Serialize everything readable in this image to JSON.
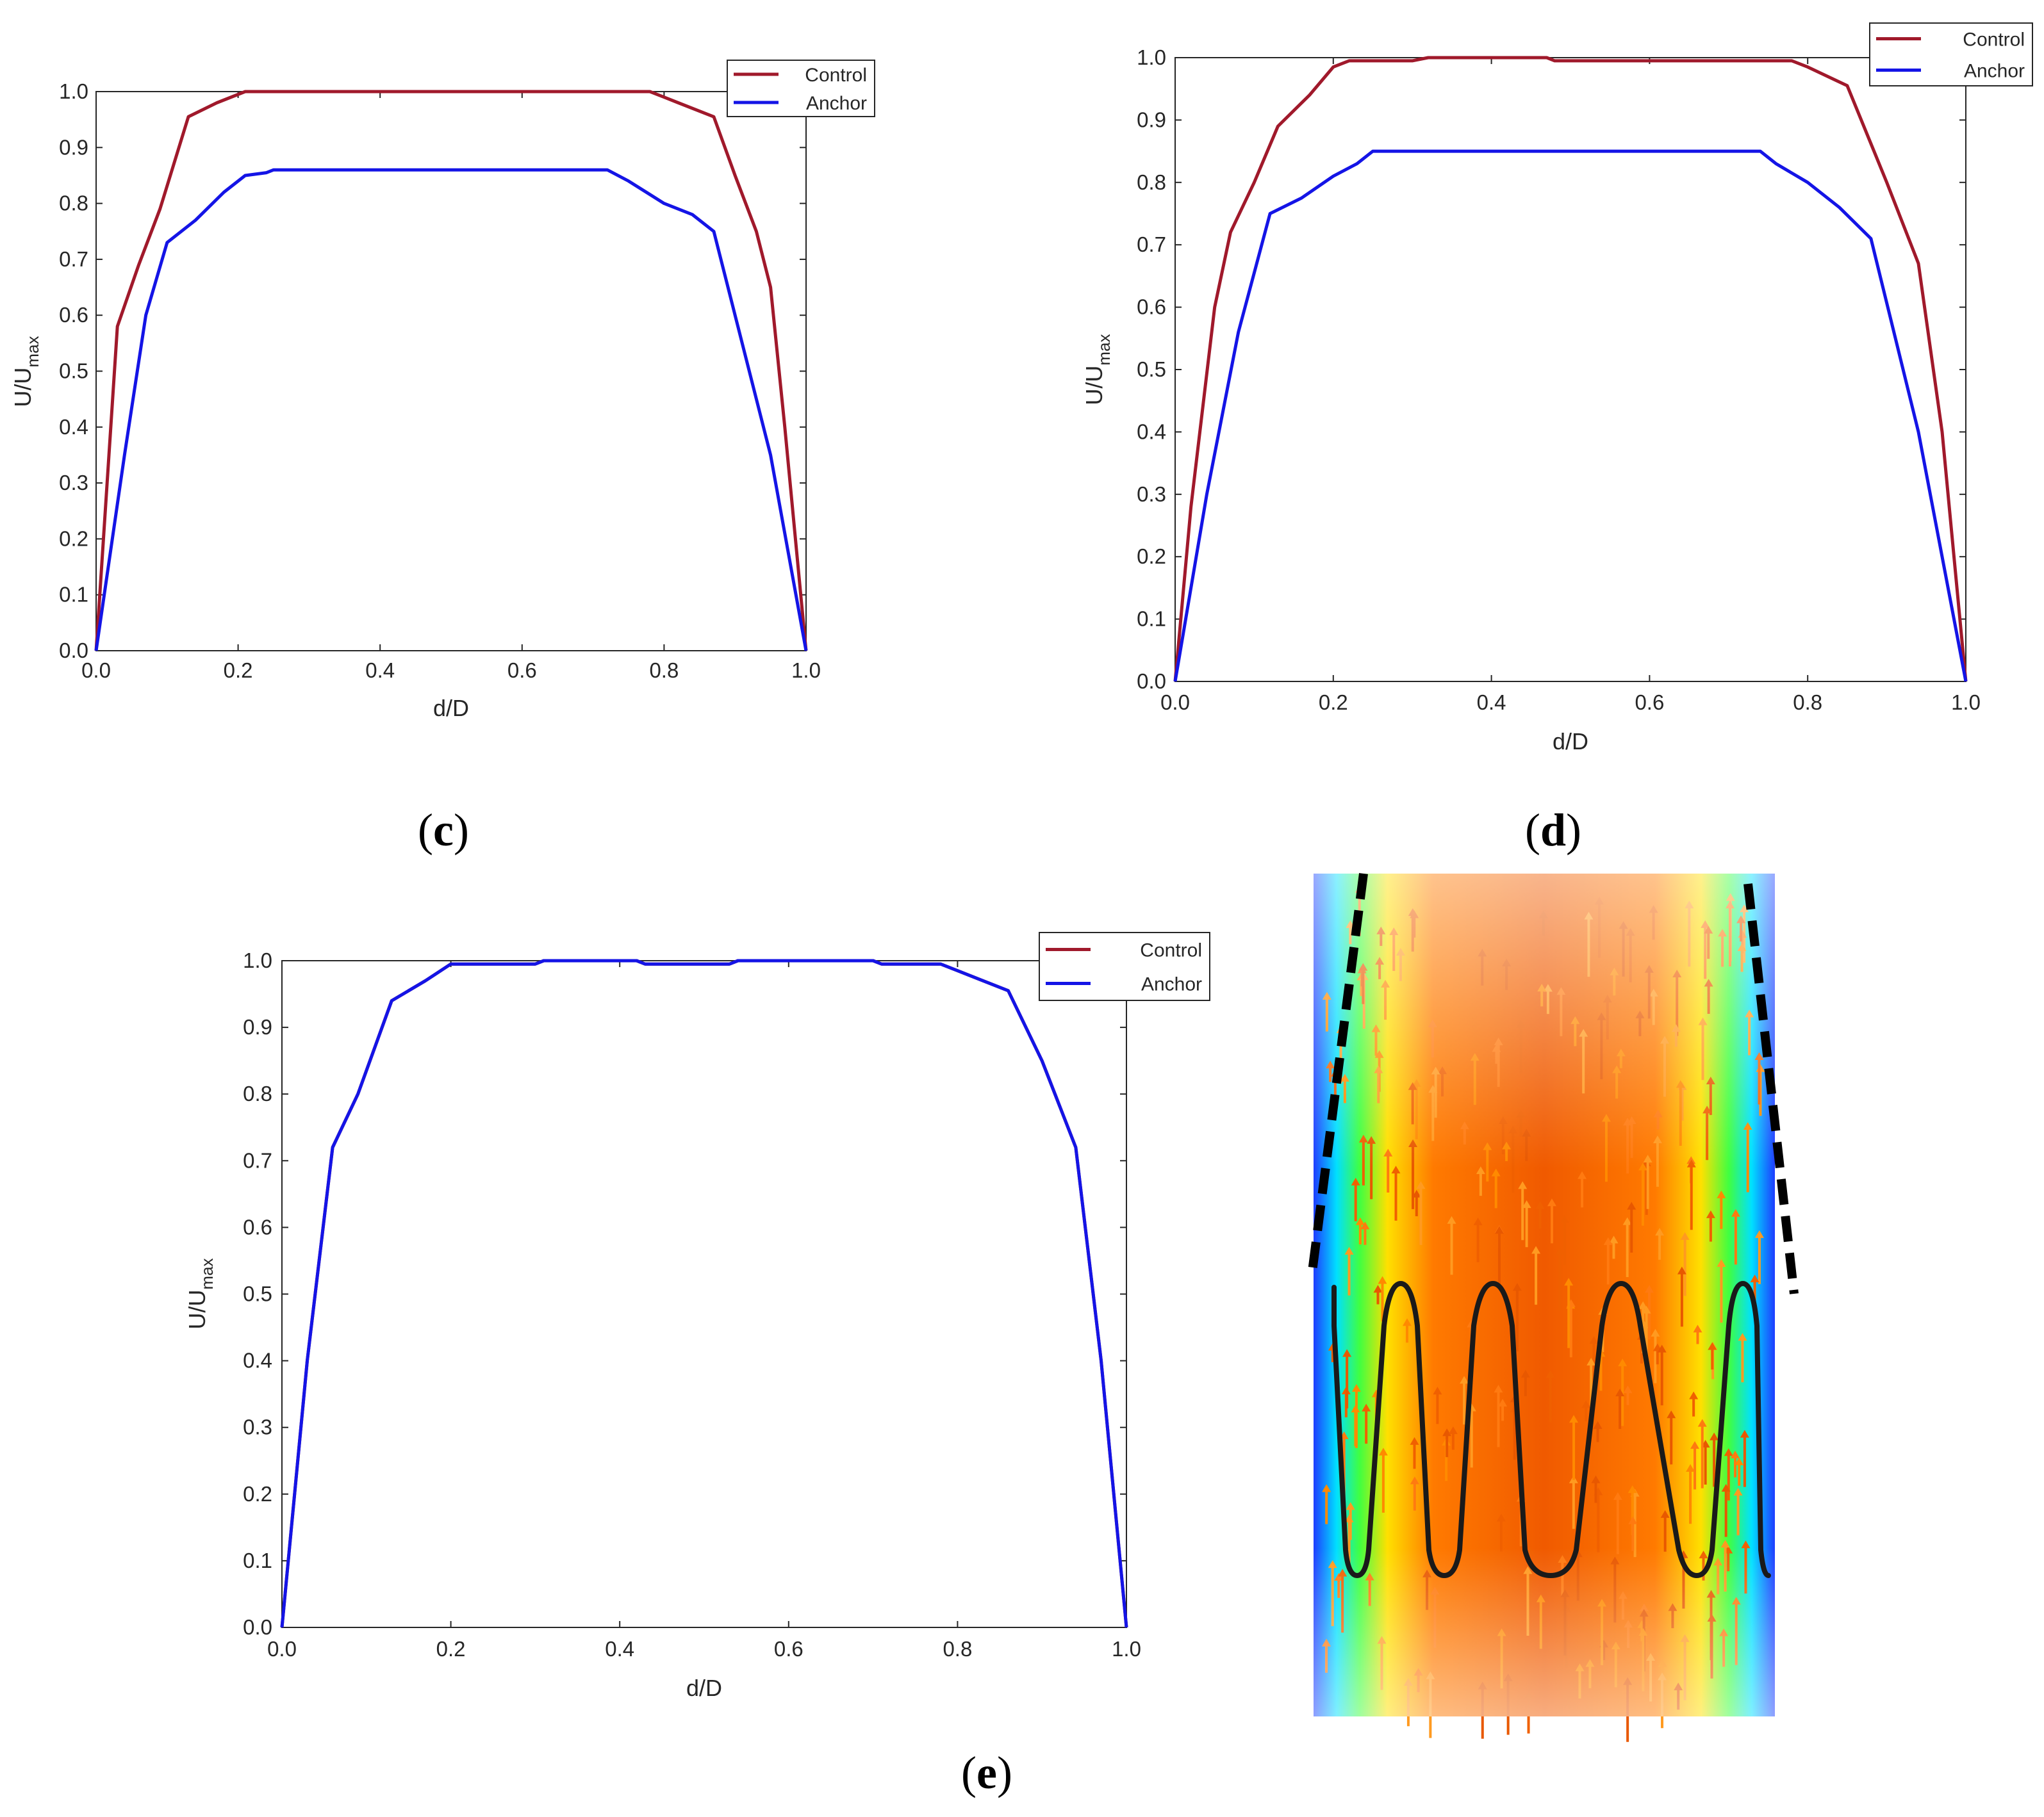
{
  "figure_labels": {
    "c": {
      "open": "(",
      "letter": "c",
      "close": ")"
    },
    "d": {
      "open": "(",
      "letter": "d",
      "close": ")"
    },
    "e": {
      "open": "(",
      "letter": "e",
      "close": ")"
    }
  },
  "colors": {
    "control": "#a0192b",
    "anchor": "#1414e6",
    "axis": "#262626",
    "dashed": "#000000",
    "coil": "#1a1a1a"
  },
  "chart_data": [
    {
      "panel": "c",
      "type": "line",
      "xlabel": "d/D",
      "ylabel_main": "U/U",
      "ylabel_sub": "max",
      "xlim": [
        0,
        1
      ],
      "ylim": [
        0,
        1
      ],
      "xticks": [
        "0.0",
        "0.2",
        "0.4",
        "0.6",
        "0.8",
        "1.0"
      ],
      "yticks": [
        "0.0",
        "0.1",
        "0.2",
        "0.3",
        "0.4",
        "0.5",
        "0.6",
        "0.7",
        "0.8",
        "0.9",
        "1.0"
      ],
      "legend": {
        "position": "top-right",
        "entries": [
          "Control",
          "Anchor"
        ]
      },
      "series": [
        {
          "name": "Control",
          "color": "#a0192b",
          "points": [
            [
              0,
              0
            ],
            [
              0.03,
              0.58
            ],
            [
              0.06,
              0.69
            ],
            [
              0.09,
              0.79
            ],
            [
              0.13,
              0.955
            ],
            [
              0.17,
              0.98
            ],
            [
              0.21,
              1.0
            ],
            [
              0.5,
              1.0
            ],
            [
              0.78,
              1.0
            ],
            [
              0.8,
              0.99
            ],
            [
              0.82,
              0.98
            ],
            [
              0.87,
              0.955
            ],
            [
              0.9,
              0.85
            ],
            [
              0.93,
              0.75
            ],
            [
              0.95,
              0.65
            ],
            [
              0.97,
              0.4
            ],
            [
              1.0,
              0
            ]
          ]
        },
        {
          "name": "Anchor",
          "color": "#1414e6",
          "points": [
            [
              0,
              0
            ],
            [
              0.04,
              0.35
            ],
            [
              0.07,
              0.6
            ],
            [
              0.1,
              0.73
            ],
            [
              0.14,
              0.77
            ],
            [
              0.18,
              0.82
            ],
            [
              0.21,
              0.85
            ],
            [
              0.24,
              0.855
            ],
            [
              0.25,
              0.86
            ],
            [
              0.5,
              0.86
            ],
            [
              0.72,
              0.86
            ],
            [
              0.75,
              0.84
            ],
            [
              0.8,
              0.8
            ],
            [
              0.84,
              0.78
            ],
            [
              0.87,
              0.75
            ],
            [
              0.9,
              0.6
            ],
            [
              0.95,
              0.35
            ],
            [
              1.0,
              0
            ]
          ]
        }
      ]
    },
    {
      "panel": "d",
      "type": "line",
      "xlabel": "d/D",
      "ylabel_main": "U/U",
      "ylabel_sub": "max",
      "xlim": [
        0,
        1
      ],
      "ylim": [
        0,
        1
      ],
      "xticks": [
        "0.0",
        "0.2",
        "0.4",
        "0.6",
        "0.8",
        "1.0"
      ],
      "yticks": [
        "0.0",
        "0.1",
        "0.2",
        "0.3",
        "0.4",
        "0.5",
        "0.6",
        "0.7",
        "0.8",
        "0.9",
        "1.0"
      ],
      "legend": {
        "position": "top-right",
        "entries": [
          "Control",
          "Anchor"
        ]
      },
      "series": [
        {
          "name": "Control",
          "color": "#a0192b",
          "points": [
            [
              0,
              0
            ],
            [
              0.02,
              0.28
            ],
            [
              0.05,
              0.6
            ],
            [
              0.07,
              0.72
            ],
            [
              0.1,
              0.8
            ],
            [
              0.13,
              0.89
            ],
            [
              0.17,
              0.94
            ],
            [
              0.2,
              0.985
            ],
            [
              0.22,
              0.995
            ],
            [
              0.3,
              0.995
            ],
            [
              0.32,
              1.0
            ],
            [
              0.47,
              1.0
            ],
            [
              0.48,
              0.995
            ],
            [
              0.78,
              0.995
            ],
            [
              0.8,
              0.985
            ],
            [
              0.85,
              0.955
            ],
            [
              0.9,
              0.8
            ],
            [
              0.94,
              0.67
            ],
            [
              0.97,
              0.4
            ],
            [
              1.0,
              0
            ]
          ]
        },
        {
          "name": "Anchor",
          "color": "#1414e6",
          "points": [
            [
              0,
              0
            ],
            [
              0.04,
              0.3
            ],
            [
              0.08,
              0.56
            ],
            [
              0.12,
              0.75
            ],
            [
              0.16,
              0.775
            ],
            [
              0.2,
              0.81
            ],
            [
              0.23,
              0.83
            ],
            [
              0.25,
              0.85
            ],
            [
              0.5,
              0.85
            ],
            [
              0.74,
              0.85
            ],
            [
              0.76,
              0.83
            ],
            [
              0.8,
              0.8
            ],
            [
              0.84,
              0.76
            ],
            [
              0.88,
              0.71
            ],
            [
              0.94,
              0.4
            ],
            [
              1.0,
              0
            ]
          ]
        }
      ]
    },
    {
      "panel": "e",
      "type": "line",
      "xlabel": "d/D",
      "ylabel_main": "U/U",
      "ylabel_sub": "max",
      "xlim": [
        0,
        1
      ],
      "ylim": [
        0,
        1
      ],
      "xticks": [
        "0.0",
        "0.2",
        "0.4",
        "0.6",
        "0.8",
        "1.0"
      ],
      "yticks": [
        "0.0",
        "0.1",
        "0.2",
        "0.3",
        "0.4",
        "0.5",
        "0.6",
        "0.7",
        "0.8",
        "0.9",
        "1.0"
      ],
      "legend": {
        "position": "top-right",
        "entries": [
          "Control",
          "Anchor"
        ]
      },
      "series": [
        {
          "name": "Control",
          "color": "#a0192b",
          "points": [
            [
              0,
              0
            ],
            [
              0.03,
              0.4
            ],
            [
              0.06,
              0.72
            ],
            [
              0.09,
              0.8
            ],
            [
              0.13,
              0.94
            ],
            [
              0.17,
              0.97
            ],
            [
              0.2,
              0.995
            ],
            [
              0.3,
              0.995
            ],
            [
              0.31,
              1.0
            ],
            [
              0.42,
              1.0
            ],
            [
              0.43,
              0.995
            ],
            [
              0.53,
              0.995
            ],
            [
              0.54,
              1.0
            ],
            [
              0.7,
              1.0
            ],
            [
              0.71,
              0.995
            ],
            [
              0.78,
              0.995
            ],
            [
              0.8,
              0.985
            ],
            [
              0.86,
              0.955
            ],
            [
              0.9,
              0.85
            ],
            [
              0.94,
              0.72
            ],
            [
              0.97,
              0.4
            ],
            [
              1.0,
              0
            ]
          ]
        },
        {
          "name": "Anchor",
          "color": "#1414e6",
          "points": [
            [
              0,
              0
            ],
            [
              0.03,
              0.4
            ],
            [
              0.06,
              0.72
            ],
            [
              0.09,
              0.8
            ],
            [
              0.13,
              0.94
            ],
            [
              0.17,
              0.97
            ],
            [
              0.2,
              0.995
            ],
            [
              0.3,
              0.995
            ],
            [
              0.31,
              1.0
            ],
            [
              0.42,
              1.0
            ],
            [
              0.43,
              0.995
            ],
            [
              0.53,
              0.995
            ],
            [
              0.54,
              1.0
            ],
            [
              0.7,
              1.0
            ],
            [
              0.71,
              0.995
            ],
            [
              0.78,
              0.995
            ],
            [
              0.8,
              0.985
            ],
            [
              0.86,
              0.955
            ],
            [
              0.9,
              0.85
            ],
            [
              0.94,
              0.72
            ],
            [
              0.97,
              0.4
            ],
            [
              1.0,
              0
            ]
          ]
        }
      ]
    }
  ]
}
